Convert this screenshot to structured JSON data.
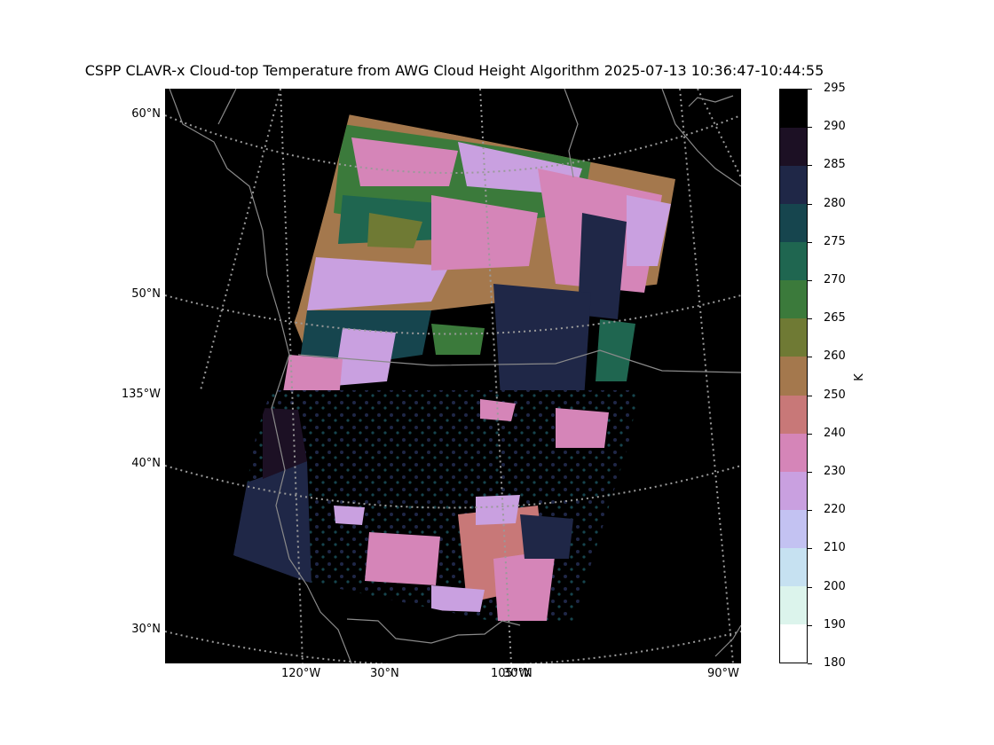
{
  "title": "CSPP CLAVR-x Cloud-top Temperature from AWG Cloud Height Algorithm 2025-07-13 10:36:47-10:44:55",
  "lat_labels": [
    "60°N",
    "50°N",
    "135°W",
    "40°N",
    "30°N"
  ],
  "lon_labels": [
    "120°W",
    "30°N",
    "105°W",
    "30°N",
    "90°W"
  ],
  "colorbar": {
    "unit": "K",
    "ticks": [
      "295",
      "290",
      "285",
      "280",
      "275",
      "270",
      "265",
      "260",
      "250",
      "240",
      "230",
      "220",
      "210",
      "200",
      "190",
      "180"
    ],
    "bins": [
      {
        "from": 290,
        "to": 295,
        "color": "#000000"
      },
      {
        "from": 285,
        "to": 290,
        "color": "#1c1024"
      },
      {
        "from": 280,
        "to": 285,
        "color": "#1f2747"
      },
      {
        "from": 275,
        "to": 280,
        "color": "#16454e"
      },
      {
        "from": 270,
        "to": 275,
        "color": "#1f6650"
      },
      {
        "from": 265,
        "to": 270,
        "color": "#3b7a3b"
      },
      {
        "from": 260,
        "to": 265,
        "color": "#6f7a34"
      },
      {
        "from": 250,
        "to": 260,
        "color": "#a4784d"
      },
      {
        "from": 240,
        "to": 250,
        "color": "#c87878"
      },
      {
        "from": 230,
        "to": 240,
        "color": "#d585b8"
      },
      {
        "from": 220,
        "to": 230,
        "color": "#c9a0e0"
      },
      {
        "from": 210,
        "to": 220,
        "color": "#c3c2f2"
      },
      {
        "from": 200,
        "to": 210,
        "color": "#c6e1f1"
      },
      {
        "from": 190,
        "to": 200,
        "color": "#dcf4ec"
      },
      {
        "from": 180,
        "to": 190,
        "color": "#ffffff"
      }
    ]
  },
  "colors": {
    "background_map": "#000000",
    "gridline": "#9a9a9a",
    "coastline": "#8a8a8a"
  }
}
